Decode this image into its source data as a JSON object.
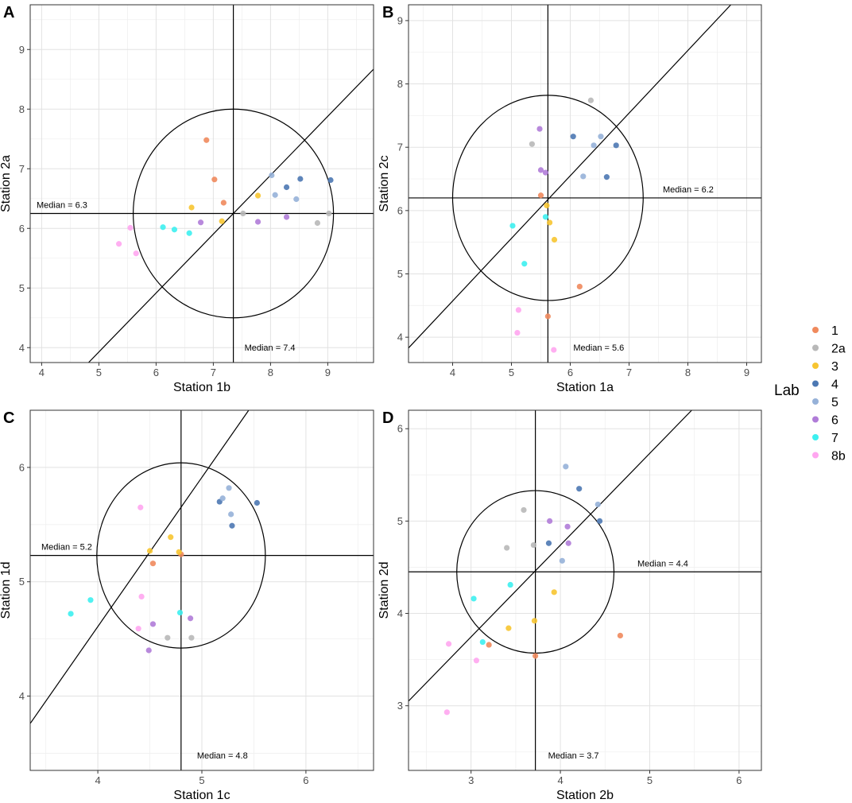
{
  "panel_labels": [
    "A",
    "B",
    "C",
    "D"
  ],
  "legend": {
    "title": "Lab",
    "entries": [
      {
        "label": "1",
        "color": "#F08A5D"
      },
      {
        "label": "2a",
        "color": "#B8B8B8"
      },
      {
        "label": "3",
        "color": "#F7C531"
      },
      {
        "label": "4",
        "color": "#4C78B3"
      },
      {
        "label": "5",
        "color": "#96B1D8"
      },
      {
        "label": "6",
        "color": "#B07CD8"
      },
      {
        "label": "7",
        "color": "#3DF0F0"
      },
      {
        "label": "8b",
        "color": "#FFA6F0"
      }
    ]
  },
  "chart_data": [
    {
      "type": "scatter",
      "panel": "A",
      "xlabel": "Station 1b",
      "ylabel": "Station 2a",
      "xlim": [
        3.8,
        9.8
      ],
      "ylim": [
        3.75,
        9.75
      ],
      "xticks": [
        4,
        5,
        6,
        7,
        8,
        9
      ],
      "yticks": [
        4,
        5,
        6,
        7,
        8,
        9
      ],
      "median_x": 7.35,
      "median_y": 6.25,
      "median_x_label": "Median = 7.4",
      "median_y_label": "Median = 6.3",
      "circle_radius": 1.75,
      "diagonal": [
        [
          4.82,
          3.75
        ],
        [
          9.8,
          8.67
        ]
      ],
      "points": [
        {
          "lab": "1",
          "x": 6.88,
          "y": 7.48
        },
        {
          "lab": "1",
          "x": 7.02,
          "y": 6.82
        },
        {
          "lab": "1",
          "x": 7.18,
          "y": 6.43
        },
        {
          "lab": "2a",
          "x": 7.52,
          "y": 6.25
        },
        {
          "lab": "2a",
          "x": 8.82,
          "y": 6.09
        },
        {
          "lab": "2a",
          "x": 9.02,
          "y": 6.25
        },
        {
          "lab": "3",
          "x": 6.62,
          "y": 6.35
        },
        {
          "lab": "3",
          "x": 7.15,
          "y": 6.12
        },
        {
          "lab": "3",
          "x": 7.78,
          "y": 6.55
        },
        {
          "lab": "4",
          "x": 8.28,
          "y": 6.69
        },
        {
          "lab": "4",
          "x": 8.52,
          "y": 6.83
        },
        {
          "lab": "4",
          "x": 9.05,
          "y": 6.81
        },
        {
          "lab": "5",
          "x": 8.02,
          "y": 6.89
        },
        {
          "lab": "5",
          "x": 8.08,
          "y": 6.56
        },
        {
          "lab": "5",
          "x": 8.45,
          "y": 6.49
        },
        {
          "lab": "6",
          "x": 6.78,
          "y": 6.1
        },
        {
          "lab": "6",
          "x": 7.78,
          "y": 6.11
        },
        {
          "lab": "6",
          "x": 8.28,
          "y": 6.19
        },
        {
          "lab": "7",
          "x": 6.12,
          "y": 6.02
        },
        {
          "lab": "7",
          "x": 6.32,
          "y": 5.98
        },
        {
          "lab": "7",
          "x": 6.58,
          "y": 5.92
        },
        {
          "lab": "8b",
          "x": 5.35,
          "y": 5.74
        },
        {
          "lab": "8b",
          "x": 5.55,
          "y": 6.01
        },
        {
          "lab": "8b",
          "x": 5.65,
          "y": 5.58
        }
      ]
    },
    {
      "type": "scatter",
      "panel": "B",
      "xlabel": "Station 1a",
      "ylabel": "Station 2c",
      "xlim": [
        3.25,
        9.25
      ],
      "ylim": [
        3.6,
        9.25
      ],
      "xticks": [
        4,
        5,
        6,
        7,
        8,
        9
      ],
      "yticks": [
        4,
        5,
        6,
        7,
        8,
        9
      ],
      "median_x": 5.62,
      "median_y": 6.2,
      "median_x_label": "Median = 5.6",
      "median_y_label": "Median = 6.2",
      "circle_radius": 1.62,
      "diagonal": [
        [
          3.25,
          3.83
        ],
        [
          8.73,
          9.25
        ]
      ],
      "points": [
        {
          "lab": "1",
          "x": 5.5,
          "y": 6.24
        },
        {
          "lab": "1",
          "x": 6.16,
          "y": 4.8
        },
        {
          "lab": "1",
          "x": 5.62,
          "y": 4.33
        },
        {
          "lab": "2a",
          "x": 5.35,
          "y": 7.05
        },
        {
          "lab": "2a",
          "x": 6.35,
          "y": 7.74
        },
        {
          "lab": "3",
          "x": 5.6,
          "y": 6.08
        },
        {
          "lab": "3",
          "x": 5.65,
          "y": 5.81
        },
        {
          "lab": "3",
          "x": 5.73,
          "y": 5.54
        },
        {
          "lab": "4",
          "x": 6.05,
          "y": 7.17
        },
        {
          "lab": "4",
          "x": 6.62,
          "y": 6.53
        },
        {
          "lab": "4",
          "x": 6.78,
          "y": 7.03
        },
        {
          "lab": "5",
          "x": 6.4,
          "y": 7.03
        },
        {
          "lab": "5",
          "x": 6.52,
          "y": 7.17
        },
        {
          "lab": "5",
          "x": 6.22,
          "y": 6.54
        },
        {
          "lab": "6",
          "x": 5.48,
          "y": 7.29
        },
        {
          "lab": "6",
          "x": 5.5,
          "y": 6.64
        },
        {
          "lab": "6",
          "x": 5.58,
          "y": 6.6
        },
        {
          "lab": "7",
          "x": 5.02,
          "y": 5.76
        },
        {
          "lab": "7",
          "x": 5.22,
          "y": 5.16
        },
        {
          "lab": "7",
          "x": 5.58,
          "y": 5.9
        },
        {
          "lab": "8b",
          "x": 5.12,
          "y": 4.43
        },
        {
          "lab": "8b",
          "x": 5.1,
          "y": 4.07
        },
        {
          "lab": "8b",
          "x": 5.72,
          "y": 3.8
        }
      ]
    },
    {
      "type": "scatter",
      "panel": "C",
      "xlabel": "Station 1c",
      "ylabel": "Station 1d",
      "xlim": [
        3.35,
        6.65
      ],
      "ylim": [
        3.35,
        6.5
      ],
      "xticks": [
        4,
        5,
        6
      ],
      "yticks": [
        4,
        5,
        6
      ],
      "median_x": 4.8,
      "median_y": 5.23,
      "median_x_label": "Median = 4.8",
      "median_y_label": "Median = 5.2",
      "circle_radius": 0.81,
      "diagonal": [
        [
          3.35,
          3.76
        ],
        [
          5.45,
          6.5
        ]
      ],
      "points": [
        {
          "lab": "1",
          "x": 4.53,
          "y": 5.16
        },
        {
          "lab": "1",
          "x": 4.8,
          "y": 5.24
        },
        {
          "lab": "2a",
          "x": 4.67,
          "y": 4.51
        },
        {
          "lab": "2a",
          "x": 4.9,
          "y": 4.51
        },
        {
          "lab": "3",
          "x": 4.5,
          "y": 5.27
        },
        {
          "lab": "3",
          "x": 4.7,
          "y": 5.39
        },
        {
          "lab": "3",
          "x": 4.78,
          "y": 5.26
        },
        {
          "lab": "4",
          "x": 5.17,
          "y": 5.7
        },
        {
          "lab": "4",
          "x": 5.29,
          "y": 5.49
        },
        {
          "lab": "4",
          "x": 5.53,
          "y": 5.69
        },
        {
          "lab": "5",
          "x": 5.2,
          "y": 5.73
        },
        {
          "lab": "5",
          "x": 5.26,
          "y": 5.82
        },
        {
          "lab": "5",
          "x": 5.28,
          "y": 5.59
        },
        {
          "lab": "6",
          "x": 4.49,
          "y": 4.4
        },
        {
          "lab": "6",
          "x": 4.53,
          "y": 4.63
        },
        {
          "lab": "6",
          "x": 4.89,
          "y": 4.68
        },
        {
          "lab": "7",
          "x": 3.74,
          "y": 4.72
        },
        {
          "lab": "7",
          "x": 3.93,
          "y": 4.84
        },
        {
          "lab": "7",
          "x": 4.79,
          "y": 4.73
        },
        {
          "lab": "8b",
          "x": 4.41,
          "y": 5.65
        },
        {
          "lab": "8b",
          "x": 4.42,
          "y": 4.87
        },
        {
          "lab": "8b",
          "x": 4.39,
          "y": 4.59
        }
      ]
    },
    {
      "type": "scatter",
      "panel": "D",
      "xlabel": "Station 2b",
      "ylabel": "Station 2d",
      "xlim": [
        2.3,
        6.25
      ],
      "ylim": [
        2.3,
        6.2
      ],
      "xticks": [
        3,
        4,
        5,
        6
      ],
      "yticks": [
        3,
        4,
        5,
        6
      ],
      "median_x": 3.72,
      "median_y": 4.45,
      "median_x_label": "Median = 3.7",
      "median_y_label": "Median = 4.4",
      "circle_radius": 0.88,
      "diagonal": [
        [
          2.3,
          3.05
        ],
        [
          5.47,
          6.2
        ]
      ],
      "points": [
        {
          "lab": "1",
          "x": 3.2,
          "y": 3.66
        },
        {
          "lab": "1",
          "x": 3.72,
          "y": 3.54
        },
        {
          "lab": "1",
          "x": 4.67,
          "y": 3.76
        },
        {
          "lab": "2a",
          "x": 3.4,
          "y": 4.71
        },
        {
          "lab": "2a",
          "x": 3.59,
          "y": 5.12
        },
        {
          "lab": "2a",
          "x": 3.7,
          "y": 4.74
        },
        {
          "lab": "3",
          "x": 3.42,
          "y": 3.84
        },
        {
          "lab": "3",
          "x": 3.71,
          "y": 3.92
        },
        {
          "lab": "3",
          "x": 3.93,
          "y": 4.23
        },
        {
          "lab": "4",
          "x": 3.87,
          "y": 4.76
        },
        {
          "lab": "4",
          "x": 4.21,
          "y": 5.35
        },
        {
          "lab": "4",
          "x": 4.44,
          "y": 5.0
        },
        {
          "lab": "5",
          "x": 4.02,
          "y": 4.57
        },
        {
          "lab": "5",
          "x": 4.06,
          "y": 5.59
        },
        {
          "lab": "5",
          "x": 4.42,
          "y": 5.18
        },
        {
          "lab": "6",
          "x": 3.88,
          "y": 5.0
        },
        {
          "lab": "6",
          "x": 4.08,
          "y": 4.94
        },
        {
          "lab": "6",
          "x": 4.09,
          "y": 4.76
        },
        {
          "lab": "7",
          "x": 3.03,
          "y": 4.16
        },
        {
          "lab": "7",
          "x": 3.13,
          "y": 3.69
        },
        {
          "lab": "7",
          "x": 3.44,
          "y": 4.31
        },
        {
          "lab": "8b",
          "x": 2.73,
          "y": 2.93
        },
        {
          "lab": "8b",
          "x": 2.75,
          "y": 3.67
        },
        {
          "lab": "8b",
          "x": 3.06,
          "y": 3.49
        }
      ]
    }
  ]
}
